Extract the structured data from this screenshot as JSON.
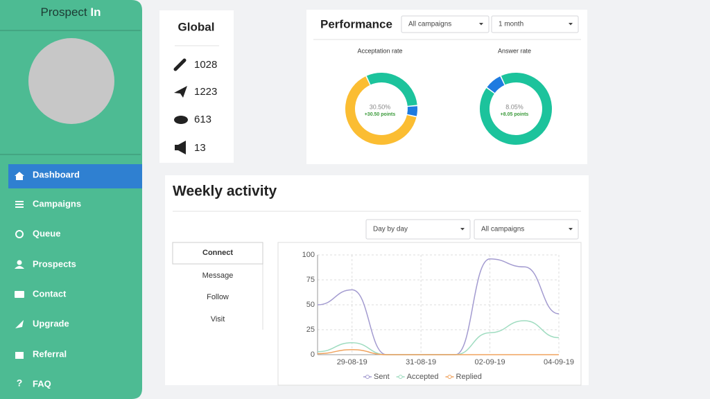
{
  "sidebar": {
    "brand": {
      "name": "Prospect",
      "accent": "In"
    },
    "menu": [
      "Dashboard",
      "Campaigns",
      "Queue",
      "Prospects",
      "Contact",
      "Upgrade",
      "Referral",
      "FAQ"
    ],
    "active": 0
  },
  "global": {
    "title": "Global",
    "stats": [
      1028,
      1223,
      613,
      13
    ]
  },
  "performance": {
    "title": "Performance",
    "filters": [
      "All campaigns",
      "1 month"
    ]
  },
  "weekly": {
    "title": "Weekly activity",
    "filters": [
      "Day by day",
      "All campaigns"
    ],
    "tabs": [
      "Connect",
      "Message",
      "Follow",
      "Visit"
    ],
    "active_tab": 0
  },
  "chart_data": [
    {
      "type": "pie",
      "donut": true,
      "title": "Acceptation rate",
      "center_label": "30.50%",
      "center_sublabel": "+30.50 points",
      "values": [
        30.5,
        5,
        64.5
      ],
      "colors": [
        "#1cc39c",
        "#1e7be0",
        "#fbbd32"
      ]
    },
    {
      "type": "pie",
      "donut": true,
      "title": "Answer rate",
      "center_label": "8.05%",
      "center_sublabel": "+8.05 points",
      "values": [
        91.95,
        8.05
      ],
      "colors": [
        "#1cc39c",
        "#1e7be0"
      ]
    },
    {
      "type": "line",
      "categories": [
        null,
        "29-08-19",
        null,
        "31-08-19",
        null,
        "02-09-19",
        null,
        "04-09-19"
      ],
      "series": [
        {
          "name": "Sent",
          "color": "#a39bd0",
          "values": [
            50,
            65,
            0,
            0,
            0,
            96,
            88,
            41
          ]
        },
        {
          "name": "Accepted",
          "color": "#9fdcc0",
          "values": [
            3,
            12,
            0,
            0,
            0,
            22,
            34,
            17
          ]
        },
        {
          "name": "Replied",
          "color": "#f0a35e",
          "values": [
            1,
            5,
            0,
            0,
            0,
            0,
            0,
            0
          ]
        }
      ],
      "ylim": [
        0,
        100
      ],
      "yticks": [
        0,
        25,
        50,
        75,
        100
      ],
      "grid": true,
      "legend": "bottom"
    }
  ]
}
